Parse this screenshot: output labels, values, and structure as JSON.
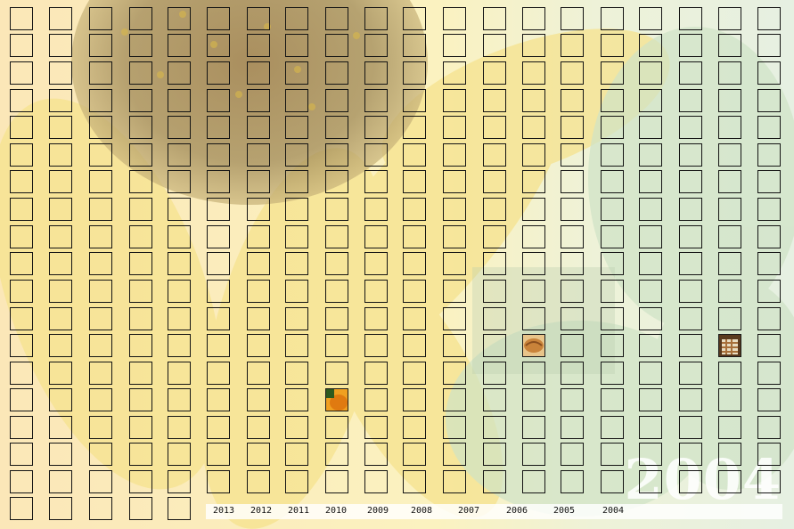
{
  "background_image": {
    "subject": "sunflower close-up",
    "tint": "#fff4c2"
  },
  "big_year": "2004",
  "year_nav": [
    {
      "label": "2013"
    },
    {
      "label": "2012"
    },
    {
      "label": "2011"
    },
    {
      "label": "2010"
    },
    {
      "label": "2009"
    },
    {
      "label": "2008"
    },
    {
      "label": "2007"
    },
    {
      "label": "2006"
    },
    {
      "label": "2005"
    },
    {
      "label": "2004"
    }
  ],
  "grid": {
    "columns": 20,
    "rows": 19,
    "last_row_columns": 5
  },
  "thumbnails": [
    {
      "column": 8,
      "row": 14,
      "subject": "orange pumpkin",
      "color": "#e07a10"
    },
    {
      "column": 13,
      "row": 12,
      "subject": "golden bread",
      "color": "#c9833a"
    },
    {
      "column": 18,
      "row": 12,
      "subject": "plaid jar",
      "color": "#a8703a"
    }
  ],
  "colors": {
    "cell_border": "#141414",
    "page_background": "#fbf0c8"
  }
}
